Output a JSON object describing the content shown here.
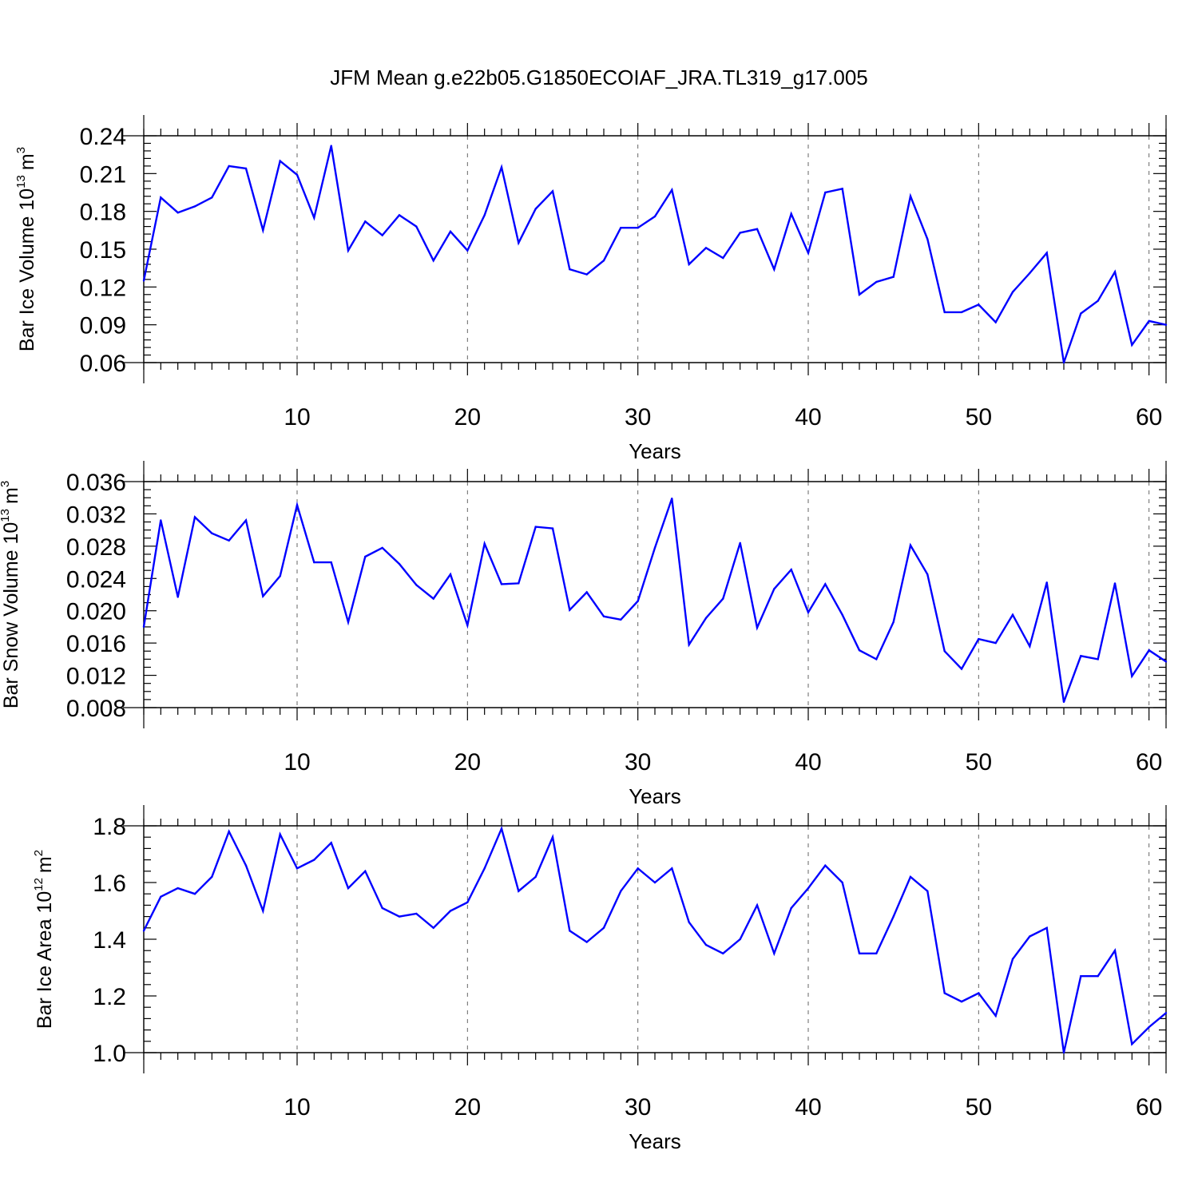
{
  "title": "JFM Mean g.e22b05.G1850ECOIAF_JRA.TL319_g17.005",
  "colors": {
    "series": "#0000ff",
    "frame": "#000000",
    "grid": "#666666"
  },
  "chart_data": [
    {
      "type": "line",
      "ylabel": {
        "main": "Bar Ice Volume 10",
        "exp": "13",
        "unit": "m",
        "unit_exp": "3"
      },
      "xlabel": "Years",
      "xlim": [
        1,
        61
      ],
      "ylim": [
        0.06,
        0.24
      ],
      "xticks": [
        10,
        20,
        30,
        40,
        50,
        60
      ],
      "yticks": [
        0.06,
        0.09,
        0.12,
        0.15,
        0.18,
        0.21,
        0.24
      ],
      "ytick_labels": [
        "0.06",
        "0.09",
        "0.12",
        "0.15",
        "0.18",
        "0.21",
        "0.24"
      ],
      "yminor_step": 0.006,
      "x_minor_step": 1,
      "grid": "dashed vertical at x ticks",
      "series": [
        {
          "name": "Bar Ice Volume",
          "x": [
            1,
            2,
            3,
            4,
            5,
            6,
            7,
            8,
            9,
            10,
            11,
            12,
            13,
            14,
            15,
            16,
            17,
            18,
            19,
            20,
            21,
            22,
            23,
            24,
            25,
            26,
            27,
            28,
            29,
            30,
            31,
            32,
            33,
            34,
            35,
            36,
            37,
            38,
            39,
            40,
            41,
            42,
            43,
            44,
            45,
            46,
            47,
            48,
            49,
            50,
            51,
            52,
            53,
            54,
            55,
            56,
            57,
            58,
            59,
            60,
            61
          ],
          "values": [
            0.125,
            0.191,
            0.179,
            0.184,
            0.191,
            0.216,
            0.214,
            0.165,
            0.22,
            0.209,
            0.175,
            0.232,
            0.149,
            0.172,
            0.161,
            0.177,
            0.168,
            0.141,
            0.164,
            0.149,
            0.177,
            0.215,
            0.155,
            0.182,
            0.196,
            0.134,
            0.13,
            0.141,
            0.167,
            0.167,
            0.176,
            0.197,
            0.138,
            0.151,
            0.143,
            0.163,
            0.166,
            0.134,
            0.178,
            0.147,
            0.195,
            0.198,
            0.114,
            0.124,
            0.128,
            0.192,
            0.158,
            0.1,
            0.1,
            0.106,
            0.092,
            0.116,
            0.131,
            0.147,
            0.06,
            0.099,
            0.109,
            0.132,
            0.074,
            0.093,
            0.09
          ]
        }
      ]
    },
    {
      "type": "line",
      "ylabel": {
        "main": "Bar Snow Volume 10",
        "exp": "13",
        "unit": "m",
        "unit_exp": "3"
      },
      "xlabel": "Years",
      "xlim": [
        1,
        61
      ],
      "ylim": [
        0.008,
        0.036
      ],
      "xticks": [
        10,
        20,
        30,
        40,
        50,
        60
      ],
      "yticks": [
        0.008,
        0.012,
        0.016,
        0.02,
        0.024,
        0.028,
        0.032,
        0.036
      ],
      "ytick_labels": [
        "0.008",
        "0.012",
        "0.016",
        "0.020",
        "0.024",
        "0.028",
        "0.032",
        "0.036"
      ],
      "yminor_step": 0.001,
      "x_minor_step": 1,
      "grid": "dashed vertical at x ticks",
      "series": [
        {
          "name": "Bar Snow Volume",
          "x": [
            1,
            2,
            3,
            4,
            5,
            6,
            7,
            8,
            9,
            10,
            11,
            12,
            13,
            14,
            15,
            16,
            17,
            18,
            19,
            20,
            21,
            22,
            23,
            24,
            25,
            26,
            27,
            28,
            29,
            30,
            31,
            32,
            33,
            34,
            35,
            36,
            37,
            38,
            39,
            40,
            41,
            42,
            43,
            44,
            45,
            46,
            47,
            48,
            49,
            50,
            51,
            52,
            53,
            54,
            55,
            56,
            57,
            58,
            59,
            60,
            61
          ],
          "values": [
            0.018,
            0.0312,
            0.0217,
            0.0316,
            0.0296,
            0.0287,
            0.0312,
            0.0218,
            0.0243,
            0.0331,
            0.026,
            0.026,
            0.0186,
            0.0267,
            0.0278,
            0.0258,
            0.0232,
            0.0215,
            0.0245,
            0.0182,
            0.0283,
            0.0233,
            0.0234,
            0.0304,
            0.0302,
            0.0201,
            0.0223,
            0.0193,
            0.0189,
            0.0212,
            0.0278,
            0.0339,
            0.0158,
            0.0191,
            0.0215,
            0.0284,
            0.0179,
            0.0227,
            0.0251,
            0.0198,
            0.0233,
            0.0195,
            0.0151,
            0.014,
            0.0186,
            0.0281,
            0.0245,
            0.015,
            0.0128,
            0.0165,
            0.016,
            0.0195,
            0.0156,
            0.0235,
            0.0087,
            0.0144,
            0.014,
            0.0234,
            0.0119,
            0.0151,
            0.0137
          ]
        }
      ]
    },
    {
      "type": "line",
      "ylabel": {
        "main": "Bar Ice Area 10",
        "exp": "12",
        "unit": "m",
        "unit_exp": "2"
      },
      "xlabel": "Years",
      "xlim": [
        1,
        61
      ],
      "ylim": [
        1.0,
        1.8
      ],
      "xticks": [
        10,
        20,
        30,
        40,
        50,
        60
      ],
      "yticks": [
        1.0,
        1.2,
        1.4,
        1.6,
        1.8
      ],
      "ytick_labels": [
        "1.0",
        "1.2",
        "1.4",
        "1.6",
        "1.8"
      ],
      "yminor_step": 0.04,
      "x_minor_step": 1,
      "grid": "dashed vertical at x ticks",
      "series": [
        {
          "name": "Bar Ice Area",
          "x": [
            1,
            2,
            3,
            4,
            5,
            6,
            7,
            8,
            9,
            10,
            11,
            12,
            13,
            14,
            15,
            16,
            17,
            18,
            19,
            20,
            21,
            22,
            23,
            24,
            25,
            26,
            27,
            28,
            29,
            30,
            31,
            32,
            33,
            34,
            35,
            36,
            37,
            38,
            39,
            40,
            41,
            42,
            43,
            44,
            45,
            46,
            47,
            48,
            49,
            50,
            51,
            52,
            53,
            54,
            55,
            56,
            57,
            58,
            59,
            60,
            61
          ],
          "values": [
            1.43,
            1.55,
            1.58,
            1.56,
            1.62,
            1.78,
            1.66,
            1.5,
            1.77,
            1.65,
            1.68,
            1.74,
            1.58,
            1.64,
            1.51,
            1.48,
            1.49,
            1.44,
            1.5,
            1.53,
            1.65,
            1.79,
            1.57,
            1.62,
            1.76,
            1.43,
            1.39,
            1.44,
            1.57,
            1.65,
            1.6,
            1.65,
            1.46,
            1.38,
            1.35,
            1.4,
            1.52,
            1.35,
            1.51,
            1.58,
            1.66,
            1.6,
            1.35,
            1.35,
            1.48,
            1.62,
            1.57,
            1.21,
            1.18,
            1.21,
            1.13,
            1.33,
            1.41,
            1.44,
            1.0,
            1.27,
            1.27,
            1.36,
            1.03,
            1.09,
            1.14
          ]
        }
      ]
    }
  ]
}
